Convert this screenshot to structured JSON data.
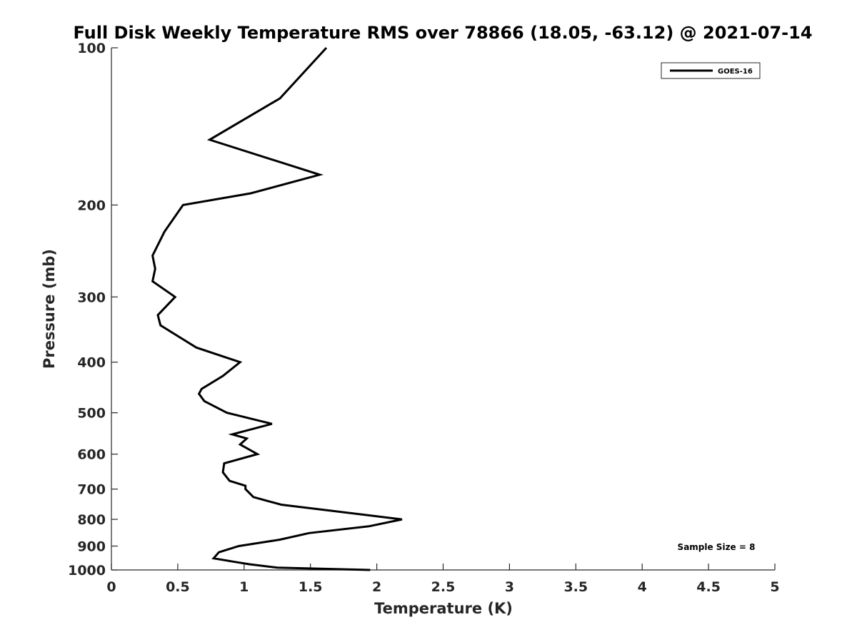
{
  "chart_data": {
    "type": "line",
    "title": "Full Disk Weekly Temperature RMS over 78866 (18.05, -63.12) @ 2021-07-14",
    "xlabel": "Temperature (K)",
    "ylabel": "Pressure (mb)",
    "xlim": [
      0,
      5
    ],
    "ylim": [
      1000,
      100
    ],
    "y_scale": "log",
    "y_reversed": true,
    "x_ticks": [
      "0",
      "0.5",
      "1",
      "1.5",
      "2",
      "2.5",
      "3",
      "3.5",
      "4",
      "4.5",
      "5"
    ],
    "y_ticks": [
      "100",
      "200",
      "300",
      "400",
      "500",
      "600",
      "700",
      "800",
      "900",
      "1000"
    ],
    "grid": false,
    "legend": {
      "position": "top-right",
      "entries": [
        "GOES-16"
      ]
    },
    "annotation": "Sample Size = 8",
    "series": [
      {
        "name": "GOES-16",
        "color": "#000000",
        "points": [
          [
            1.62,
            100
          ],
          [
            1.27,
            125
          ],
          [
            0.74,
            150
          ],
          [
            1.57,
            175
          ],
          [
            1.05,
            190
          ],
          [
            0.54,
            200
          ],
          [
            0.4,
            225
          ],
          [
            0.31,
            250
          ],
          [
            0.33,
            265
          ],
          [
            0.31,
            280
          ],
          [
            0.48,
            300
          ],
          [
            0.35,
            325
          ],
          [
            0.37,
            340
          ],
          [
            0.64,
            375
          ],
          [
            0.97,
            400
          ],
          [
            0.84,
            425
          ],
          [
            0.68,
            450
          ],
          [
            0.66,
            460
          ],
          [
            0.7,
            475
          ],
          [
            0.87,
            500
          ],
          [
            1.21,
            525
          ],
          [
            0.91,
            550
          ],
          [
            1.02,
            560
          ],
          [
            0.97,
            575
          ],
          [
            1.1,
            600
          ],
          [
            0.85,
            625
          ],
          [
            0.84,
            650
          ],
          [
            0.89,
            675
          ],
          [
            1.01,
            690
          ],
          [
            1.01,
            700
          ],
          [
            1.07,
            725
          ],
          [
            1.28,
            750
          ],
          [
            2.19,
            800
          ],
          [
            1.94,
            825
          ],
          [
            1.49,
            850
          ],
          [
            1.27,
            875
          ],
          [
            0.96,
            900
          ],
          [
            0.81,
            925
          ],
          [
            0.77,
            950
          ],
          [
            0.93,
            965
          ],
          [
            1.04,
            975
          ],
          [
            1.25,
            990
          ],
          [
            1.95,
            1000
          ]
        ]
      }
    ]
  }
}
